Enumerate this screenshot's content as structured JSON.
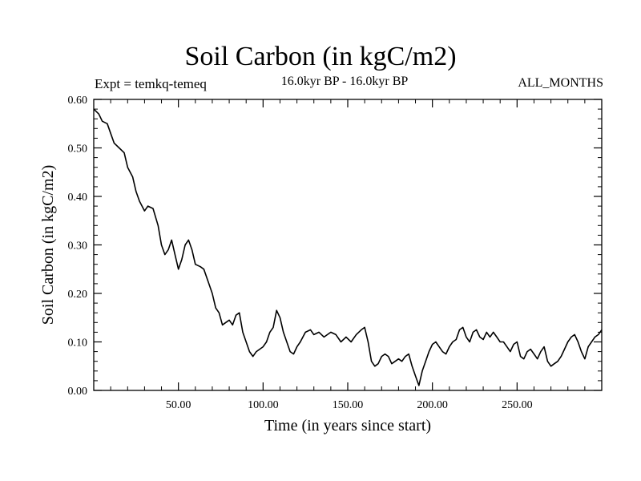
{
  "chart_data": {
    "type": "line",
    "title": "Soil Carbon (in kgC/m2)",
    "experiment": "Expt = temkq-temeq",
    "period": "16.0kyr BP - 16.0kyr BP",
    "months": "ALL_MONTHS",
    "xlabel": "Time (in years since start)",
    "ylabel": "Soil Carbon (in kgC/m2)",
    "xlim": [
      0,
      300
    ],
    "ylim": [
      0,
      0.6
    ],
    "xticks": [
      50,
      100,
      150,
      200,
      250
    ],
    "xtick_labels": [
      "50.00",
      "100.00",
      "150.00",
      "200.00",
      "250.00"
    ],
    "yticks": [
      0,
      0.1,
      0.2,
      0.3,
      0.4,
      0.5,
      0.6
    ],
    "ytick_labels": [
      "0.00",
      "0.10",
      "0.20",
      "0.30",
      "0.40",
      "0.50",
      "0.60"
    ],
    "series": [
      {
        "name": "Soil Carbon",
        "color": "#000000",
        "x": [
          0,
          3,
          5,
          8,
          10,
          12,
          15,
          18,
          20,
          23,
          25,
          27,
          30,
          32,
          35,
          38,
          40,
          42,
          44,
          46,
          48,
          50,
          52,
          54,
          56,
          58,
          60,
          63,
          65,
          68,
          70,
          72,
          74,
          76,
          78,
          80,
          82,
          84,
          86,
          88,
          90,
          92,
          94,
          96,
          98,
          100,
          102,
          104,
          106,
          108,
          110,
          112,
          114,
          116,
          118,
          120,
          122,
          125,
          128,
          130,
          133,
          136,
          140,
          143,
          146,
          149,
          152,
          155,
          158,
          160,
          162,
          164,
          166,
          168,
          170,
          172,
          174,
          176,
          178,
          180,
          182,
          184,
          186,
          188,
          190,
          192,
          194,
          196,
          198,
          200,
          202,
          204,
          206,
          208,
          210,
          212,
          214,
          216,
          218,
          220,
          222,
          224,
          226,
          228,
          230,
          232,
          234,
          236,
          238,
          240,
          242,
          244,
          246,
          248,
          250,
          252,
          254,
          256,
          258,
          260,
          262,
          264,
          266,
          268,
          270,
          272,
          274,
          276,
          278,
          280,
          282,
          284,
          286,
          288,
          290,
          292,
          294,
          296,
          298,
          300
        ],
        "values": [
          0.58,
          0.57,
          0.555,
          0.55,
          0.53,
          0.51,
          0.5,
          0.49,
          0.46,
          0.44,
          0.41,
          0.39,
          0.37,
          0.38,
          0.375,
          0.34,
          0.3,
          0.28,
          0.29,
          0.31,
          0.28,
          0.25,
          0.27,
          0.3,
          0.31,
          0.29,
          0.26,
          0.255,
          0.25,
          0.22,
          0.2,
          0.17,
          0.16,
          0.135,
          0.14,
          0.145,
          0.135,
          0.155,
          0.16,
          0.12,
          0.1,
          0.08,
          0.07,
          0.08,
          0.085,
          0.09,
          0.1,
          0.12,
          0.13,
          0.165,
          0.15,
          0.12,
          0.1,
          0.08,
          0.075,
          0.09,
          0.1,
          0.12,
          0.125,
          0.115,
          0.12,
          0.11,
          0.12,
          0.115,
          0.1,
          0.11,
          0.1,
          0.115,
          0.125,
          0.13,
          0.1,
          0.06,
          0.05,
          0.055,
          0.07,
          0.075,
          0.07,
          0.055,
          0.06,
          0.065,
          0.06,
          0.07,
          0.075,
          0.05,
          0.03,
          0.01,
          0.04,
          0.06,
          0.08,
          0.095,
          0.1,
          0.09,
          0.08,
          0.075,
          0.09,
          0.1,
          0.105,
          0.125,
          0.13,
          0.11,
          0.1,
          0.12,
          0.125,
          0.11,
          0.105,
          0.12,
          0.11,
          0.12,
          0.11,
          0.1,
          0.1,
          0.09,
          0.08,
          0.095,
          0.1,
          0.07,
          0.065,
          0.08,
          0.085,
          0.075,
          0.065,
          0.08,
          0.09,
          0.06,
          0.05,
          0.055,
          0.06,
          0.07,
          0.085,
          0.1,
          0.11,
          0.115,
          0.1,
          0.08,
          0.065,
          0.09,
          0.1,
          0.11,
          0.115,
          0.125
        ]
      }
    ]
  }
}
